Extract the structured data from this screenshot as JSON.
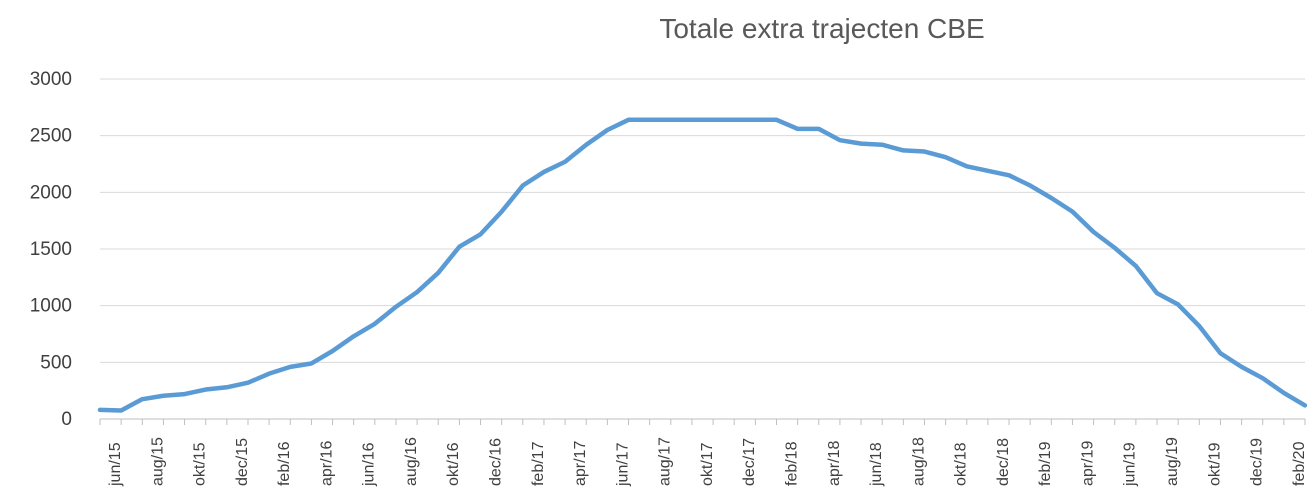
{
  "chart_data": {
    "type": "line",
    "title": "Totale extra trajecten CBE",
    "xlabel": "",
    "ylabel": "",
    "ylim": [
      0,
      3000
    ],
    "yticks": [
      0,
      500,
      1000,
      1500,
      2000,
      2500,
      3000
    ],
    "grid": true,
    "legend": "none",
    "x_tick_labels": [
      "jun/15",
      "aug/15",
      "okt/15",
      "dec/15",
      "feb/16",
      "apr/16",
      "jun/16",
      "aug/16",
      "okt/16",
      "dec/16",
      "feb/17",
      "apr/17",
      "jun/17",
      "aug/17",
      "okt/17",
      "dec/17",
      "feb/18",
      "apr/18",
      "jun/18",
      "aug/18",
      "okt/18",
      "dec/18",
      "feb/19",
      "apr/19",
      "jun/19",
      "aug/19",
      "okt/19",
      "dec/19",
      "feb/20"
    ],
    "x": [
      "jun/15",
      "jul/15",
      "aug/15",
      "sep/15",
      "okt/15",
      "nov/15",
      "dec/15",
      "jan/16",
      "feb/16",
      "mrt/16",
      "apr/16",
      "mei/16",
      "jun/16",
      "jul/16",
      "aug/16",
      "sep/16",
      "okt/16",
      "nov/16",
      "dec/16",
      "jan/17",
      "feb/17",
      "mrt/17",
      "apr/17",
      "mei/17",
      "jun/17",
      "jul/17",
      "aug/17",
      "sep/17",
      "okt/17",
      "nov/17",
      "dec/17",
      "jan/18",
      "feb/18",
      "mrt/18",
      "apr/18",
      "mei/18",
      "jun/18",
      "jul/18",
      "aug/18",
      "sep/18",
      "okt/18",
      "nov/18",
      "dec/18",
      "jan/19",
      "feb/19",
      "mrt/19",
      "apr/19",
      "mei/19",
      "jun/19",
      "jul/19",
      "aug/19",
      "sep/19",
      "okt/19",
      "nov/19",
      "dec/19",
      "jan/20",
      "feb/20",
      "mrt/20"
    ],
    "series": [
      {
        "values": [
          80,
          75,
          175,
          205,
          220,
          260,
          280,
          320,
          400,
          460,
          490,
          600,
          730,
          840,
          990,
          1120,
          1290,
          1520,
          1630,
          1830,
          2060,
          2180,
          2270,
          2420,
          2550,
          2640,
          2640,
          2640,
          2640,
          2640,
          2640,
          2640,
          2640,
          2560,
          2560,
          2460,
          2430,
          2420,
          2370,
          2360,
          2310,
          2230,
          2190,
          2150,
          2060,
          1950,
          1830,
          1650,
          1510,
          1350,
          1110,
          1010,
          820,
          580,
          460,
          360,
          230,
          120
        ],
        "color": "#5b9bd5"
      }
    ]
  }
}
